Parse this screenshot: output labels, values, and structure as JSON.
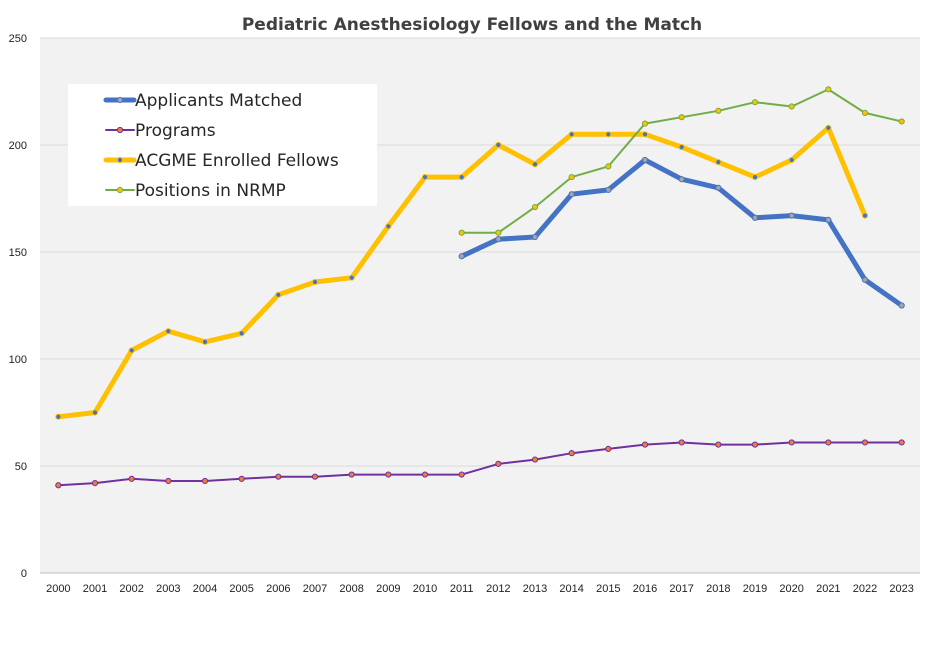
{
  "chart_data": {
    "type": "line",
    "title": "Pediatric Anesthesiology Fellows and the Match",
    "xlabel": "",
    "ylabel": "",
    "categories": [
      "2000",
      "2001",
      "2002",
      "2003",
      "2004",
      "2005",
      "2006",
      "2007",
      "2008",
      "2009",
      "2010",
      "2011",
      "2012",
      "2013",
      "2014",
      "2015",
      "2016",
      "2017",
      "2018",
      "2019",
      "2020",
      "2021",
      "2022",
      "2023"
    ],
    "y_ticks": [
      "0",
      "50",
      "100",
      "150",
      "200",
      "250"
    ],
    "ylim": [
      0,
      250
    ],
    "grid": true,
    "legend_position": "top-left",
    "plot_background": "#f2f2f2",
    "series": [
      {
        "name": "Applicants Matched",
        "color": "#4472c4",
        "line_width": 5,
        "marker_fill": "#a5a5a5",
        "values": [
          null,
          null,
          null,
          null,
          null,
          null,
          null,
          null,
          null,
          null,
          null,
          148,
          156,
          157,
          177,
          179,
          193,
          184,
          180,
          166,
          167,
          165,
          137,
          125
        ]
      },
      {
        "name": "Programs",
        "color": "#7030a0",
        "line_width": 2,
        "marker_fill": "#ed7d31",
        "values": [
          41,
          42,
          44,
          43,
          43,
          44,
          45,
          45,
          46,
          46,
          46,
          46,
          51,
          53,
          56,
          58,
          60,
          61,
          60,
          60,
          61,
          61,
          61,
          61
        ]
      },
      {
        "name": "ACGME Enrolled Fellows",
        "color": "#ffc000",
        "line_width": 5,
        "marker_fill": "#4472c4",
        "values": [
          73,
          75,
          104,
          113,
          108,
          112,
          130,
          136,
          138,
          162,
          185,
          185,
          200,
          191,
          205,
          205,
          205,
          199,
          192,
          185,
          193,
          208,
          167,
          null
        ]
      },
      {
        "name": "Positions in NRMP",
        "color": "#70ad47",
        "line_width": 2,
        "marker_fill": "#ffc000",
        "values": [
          null,
          null,
          null,
          null,
          null,
          null,
          null,
          null,
          null,
          null,
          null,
          159,
          159,
          171,
          185,
          190,
          210,
          213,
          216,
          220,
          218,
          226,
          215,
          211
        ]
      }
    ]
  }
}
